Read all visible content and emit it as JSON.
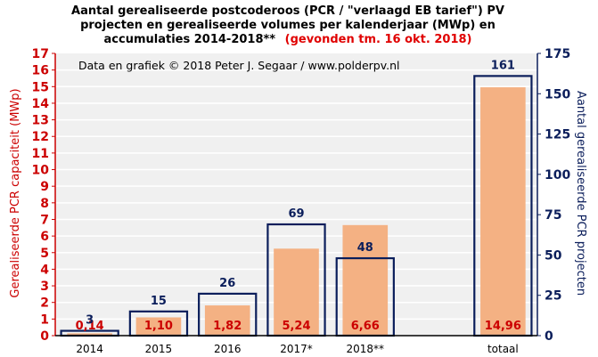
{
  "title": {
    "line1": "Aantal gerealiseerde postcoderoos (PCR / \"verlaagd EB tarief\") PV",
    "line2": "projecten en gerealiseerde volumes per kalenderjaar (MWp) en",
    "line3_black": "accumulaties 2014-2018**",
    "line3_red": "(gevonden tm. 16 okt. 2018)"
  },
  "credit": "Data en grafiek © 2018 Peter J. Segaar / www.polderpv.nl",
  "colors": {
    "bar_fill": "#f4b183",
    "outline": "#0b1e5b",
    "left_axis": "#cc0000",
    "right_axis": "#0b1e5b",
    "plot_bg": "#f0f0f0",
    "grid": "#ffffff"
  },
  "chart_data": {
    "type": "bar",
    "categories": [
      "2014",
      "2015",
      "2016",
      "2017*",
      "2018**",
      "",
      "totaal"
    ],
    "series": [
      {
        "axis": "left",
        "values": [
          0.14,
          1.1,
          1.82,
          5.24,
          6.66,
          null,
          14.96
        ],
        "labels": [
          "0,14",
          "1,10",
          "1,82",
          "5,24",
          "6,66",
          "",
          "14,96"
        ]
      },
      {
        "axis": "right",
        "style": "outline",
        "values": [
          3,
          15,
          26,
          69,
          48,
          null,
          161
        ],
        "labels": [
          "3",
          "15",
          "26",
          "69",
          "48",
          "",
          "161"
        ]
      }
    ],
    "ylabel_left": "Gerealiseerde  PCR capaciteit (MWp)",
    "ylabel_right": "Aantal gerealiseerde  PCR projecten",
    "ylim_left": [
      0,
      17
    ],
    "ylim_right": [
      0,
      175
    ],
    "yticks_left": [
      "0",
      "1",
      "2",
      "3",
      "4",
      "5",
      "6",
      "7",
      "8",
      "9",
      "10",
      "11",
      "12",
      "13",
      "14",
      "15",
      "16",
      "17"
    ],
    "yticks_right": [
      "0",
      "25",
      "50",
      "75",
      "100",
      "125",
      "150",
      "175"
    ],
    "grid": true
  }
}
